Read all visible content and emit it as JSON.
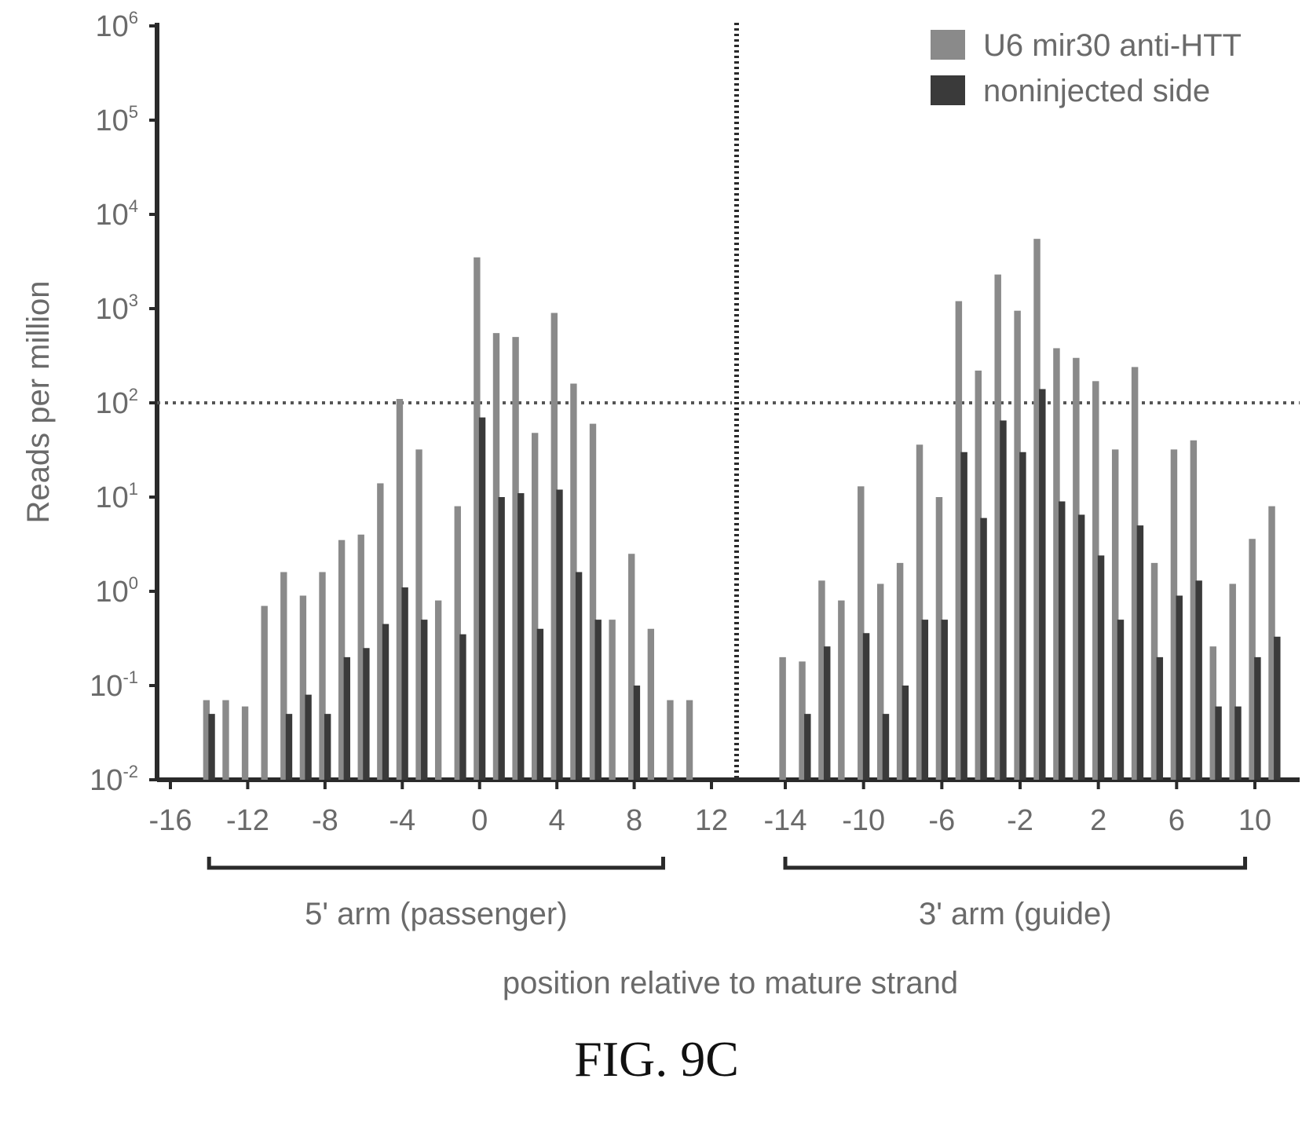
{
  "figure_caption": "FIG. 9C",
  "chart_data": {
    "type": "bar",
    "scale": "log",
    "ylabel": "Reads per million",
    "xlabel": "position relative to mature strand",
    "ylim": [
      0.01,
      1000000
    ],
    "y_ticks": [
      {
        "value": 0.01,
        "label": "10",
        "exp": "-2"
      },
      {
        "value": 0.1,
        "label": "10",
        "exp": "-1"
      },
      {
        "value": 1,
        "label": "10",
        "exp": "0"
      },
      {
        "value": 10,
        "label": "10",
        "exp": "1"
      },
      {
        "value": 100,
        "label": "10",
        "exp": "2"
      },
      {
        "value": 1000,
        "label": "10",
        "exp": "3"
      },
      {
        "value": 10000,
        "label": "10",
        "exp": "4"
      },
      {
        "value": 100000,
        "label": "10",
        "exp": "5"
      },
      {
        "value": 1000000,
        "label": "10",
        "exp": "6"
      }
    ],
    "threshold_line": 100,
    "legend": {
      "position": "top-right",
      "entries": [
        {
          "name": "U6 mir30 anti-HTT",
          "color": "#8a8a8a"
        },
        {
          "name": "noninjected side",
          "color": "#3a3a3a"
        }
      ]
    },
    "colors": {
      "anti_htt": "#8a8a8a",
      "noninjected": "#3a3a3a",
      "axis": "#2a2a2a",
      "text": "#6a6a6a"
    },
    "panels": [
      {
        "name": "5' arm (passenger)",
        "x_ticks": [
          "-16",
          "-12",
          "-8",
          "-4",
          "0",
          "4",
          "8",
          "12"
        ],
        "x_range": [
          -16,
          13
        ],
        "bracket": [
          -14,
          9.5
        ],
        "positions": [
          -14,
          -13,
          -12,
          -11,
          -10,
          -9,
          -8,
          -7,
          -6,
          -5,
          -4,
          -3,
          -2,
          -1,
          0,
          1,
          2,
          3,
          4,
          5,
          6,
          7,
          8,
          9,
          10,
          11,
          12
        ],
        "series": [
          {
            "name": "U6 mir30 anti-HTT",
            "values": [
              0.07,
              0.07,
              0.06,
              0.7,
              1.6,
              0.9,
              1.6,
              3.5,
              4,
              14,
              110,
              32,
              0.8,
              8,
              3500,
              550,
              500,
              48,
              900,
              160,
              60,
              0.5,
              2.5,
              0.4,
              0.07,
              0.07,
              0.01
            ]
          },
          {
            "name": "noninjected side",
            "values": [
              0.05,
              0.01,
              0.01,
              0.01,
              0.05,
              0.08,
              0.05,
              0.2,
              0.25,
              0.45,
              1.1,
              0.5,
              0.01,
              0.35,
              70,
              10,
              11,
              0.4,
              12,
              1.6,
              0.5,
              0.01,
              0.1,
              0.01,
              0.01,
              0.01,
              0.01
            ]
          }
        ]
      },
      {
        "name": "3' arm (guide)",
        "x_ticks": [
          "-14",
          "-10",
          "-6",
          "-2",
          "2",
          "6",
          "10"
        ],
        "x_range": [
          -15,
          12.6
        ],
        "bracket": [
          -14,
          9.5
        ],
        "positions": [
          -14,
          -13,
          -12,
          -11,
          -10,
          -9,
          -8,
          -7,
          -6,
          -5,
          -4,
          -3,
          -2,
          -1,
          0,
          1,
          2,
          3,
          4,
          5,
          6,
          7,
          8,
          9,
          10,
          11,
          12
        ],
        "series": [
          {
            "name": "U6 mir30 anti-HTT",
            "values": [
              0.2,
              0.18,
              1.3,
              0.8,
              13,
              1.2,
              2,
              36,
              10,
              1200,
              220,
              2300,
              950,
              5500,
              380,
              300,
              170,
              32,
              240,
              2,
              32,
              40,
              0.26,
              1.2,
              3.6,
              8,
              0.01
            ]
          },
          {
            "name": "noninjected side",
            "values": [
              0.01,
              0.05,
              0.26,
              0.01,
              0.36,
              0.05,
              0.1,
              0.5,
              0.5,
              30,
              6,
              65,
              30,
              140,
              9,
              6.5,
              2.4,
              0.5,
              5,
              0.2,
              0.9,
              1.3,
              0.06,
              0.06,
              0.2,
              0.33,
              0.01
            ]
          }
        ]
      }
    ]
  }
}
